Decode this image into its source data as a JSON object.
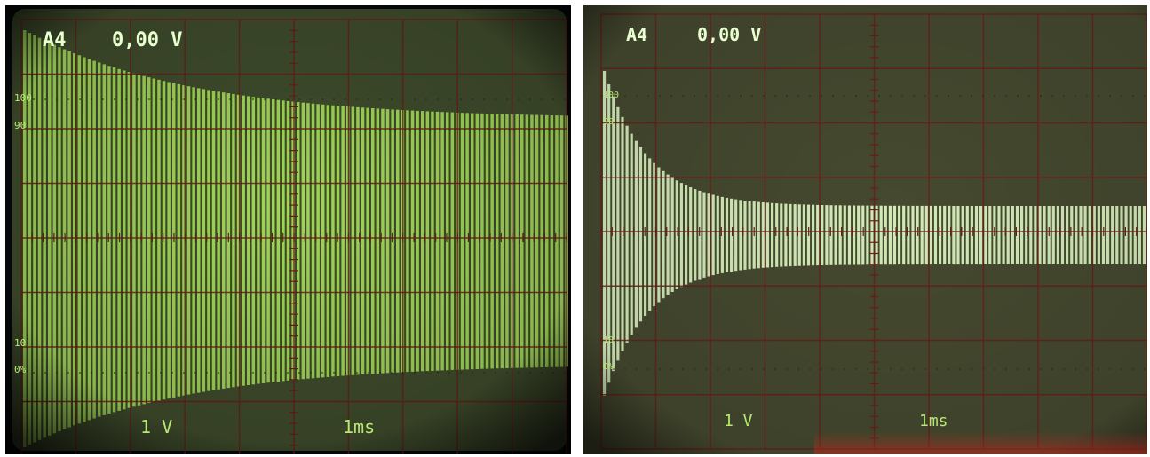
{
  "photos": [
    {
      "name": "left",
      "channel": "A4",
      "offset": "0,00 V",
      "volts_per_div": "1 V",
      "time_per_div": "1ms",
      "graticule_labels": [
        "100",
        "90",
        "10",
        "0%"
      ],
      "envelope_settle_fraction": 0.3,
      "colors": {
        "screen": "#3f4c2c",
        "trace": "#a9e25b",
        "grid": "#6b1d18",
        "text": "#e8ffd0",
        "scale_text": "#b7e874"
      }
    },
    {
      "name": "right",
      "channel": "A4",
      "offset": "0,00 V",
      "volts_per_div": "1 V",
      "time_per_div": "1ms",
      "graticule_labels": [
        "100",
        "90",
        "10",
        "0%"
      ],
      "envelope_settle_fraction": 0.08,
      "colors": {
        "screen": "#45492f",
        "trace": "#dff8c4",
        "grid": "#6b1d18",
        "text": "#e8ffd0",
        "scale_text": "#b7e874"
      }
    }
  ]
}
